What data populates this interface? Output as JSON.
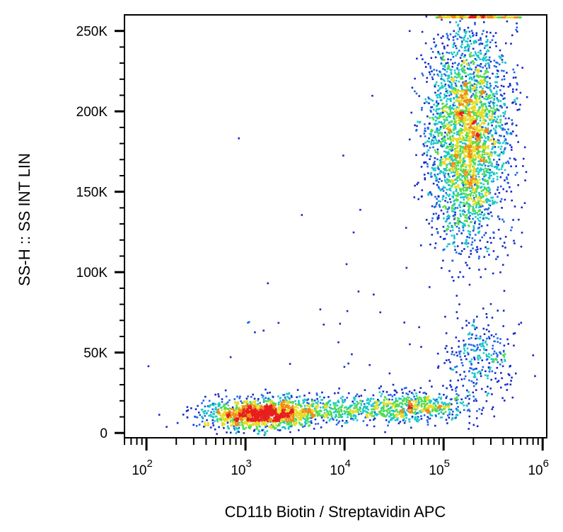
{
  "chart_data": {
    "type": "scatter",
    "title": "",
    "xlabel": "CD11b Biotin / Streptavidin APC",
    "ylabel": "SS-H :: SS INT LIN",
    "x_scale": "log",
    "xlim": [
      60,
      1100000
    ],
    "ylim": [
      -3000,
      260000
    ],
    "x_ticks": [
      {
        "value": 100,
        "base": "10",
        "exp": "2"
      },
      {
        "value": 1000,
        "base": "10",
        "exp": "3"
      },
      {
        "value": 10000,
        "base": "10",
        "exp": "4"
      },
      {
        "value": 100000,
        "base": "10",
        "exp": "5"
      },
      {
        "value": 1000000,
        "base": "10",
        "exp": "6"
      }
    ],
    "y_ticks": [
      {
        "value": 0,
        "label": "0"
      },
      {
        "value": 50000,
        "label": "50K"
      },
      {
        "value": 100000,
        "label": "100K"
      },
      {
        "value": 150000,
        "label": "150K"
      },
      {
        "value": 200000,
        "label": "200K"
      },
      {
        "value": 250000,
        "label": "250K"
      }
    ],
    "grid": false,
    "density_colors": [
      "#1428c8",
      "#1e64e6",
      "#18c8c8",
      "#50dc50",
      "#e6dc28",
      "#f08c14",
      "#e61e1e"
    ],
    "populations": [
      {
        "cx": 1400,
        "cy": 12000,
        "sx_log": 0.28,
        "sy": 4500,
        "n": 1400
      },
      {
        "cx": 8000,
        "cy": 15000,
        "sx_log": 0.45,
        "sy": 4500,
        "n": 500
      },
      {
        "cx": 50000,
        "cy": 17000,
        "sx_log": 0.28,
        "sy": 4500,
        "n": 550
      },
      {
        "cx": 170000,
        "cy": 185000,
        "sx_log": 0.2,
        "sy": 33000,
        "n": 3200
      },
      {
        "cx": 230000,
        "cy": 48000,
        "sx_log": 0.17,
        "sy": 13000,
        "n": 280
      },
      {
        "cx": 25000,
        "cy": 60000,
        "sx_log": 0.9,
        "sy": 45000,
        "n": 60
      }
    ],
    "saturated_band": {
      "x_range": [
        80000,
        600000
      ],
      "y": 259000
    }
  }
}
